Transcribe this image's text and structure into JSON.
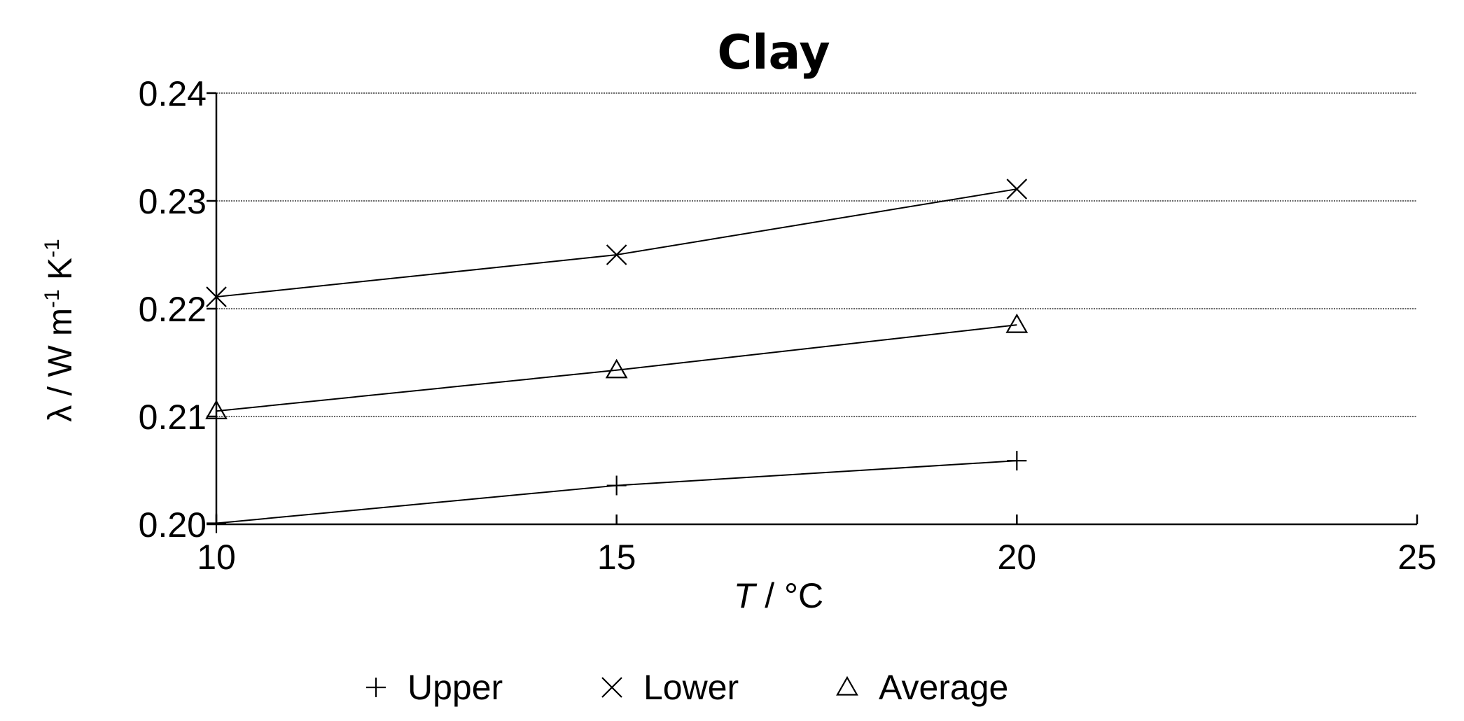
{
  "chart_data": {
    "type": "line",
    "title": "Clay",
    "xlabel_var": "T",
    "xlabel_unit": " / °C",
    "ylabel": "λ / W m-1 K-1",
    "ylabel_parts": [
      "λ / W m",
      "-1",
      " K",
      "-1"
    ],
    "xlim": [
      10,
      25
    ],
    "ylim": [
      0.2,
      0.24
    ],
    "x_ticks": [
      10,
      15,
      20,
      25
    ],
    "x_tick_labels": [
      "10",
      "15",
      "20",
      "25"
    ],
    "y_ticks": [
      0.2,
      0.21,
      0.22,
      0.23,
      0.24
    ],
    "y_tick_labels": [
      "0.20",
      "0.21",
      "0.22",
      "0.23",
      "0.24"
    ],
    "grid": "horizontal",
    "legend_position": "bottom-center",
    "series": [
      {
        "name": "Upper",
        "marker": "plus",
        "marker_glyph": "+",
        "x": [
          10,
          15,
          20
        ],
        "values": [
          0.2001,
          0.2036,
          0.2059
        ]
      },
      {
        "name": "Lower",
        "marker": "cross",
        "marker_glyph": "×",
        "x": [
          10,
          15,
          20
        ],
        "values": [
          0.2211,
          0.225,
          0.2311
        ]
      },
      {
        "name": "Average",
        "marker": "triangle",
        "marker_glyph": "△",
        "x": [
          10,
          15,
          20
        ],
        "values": [
          0.2105,
          0.2143,
          0.2185
        ]
      }
    ]
  }
}
